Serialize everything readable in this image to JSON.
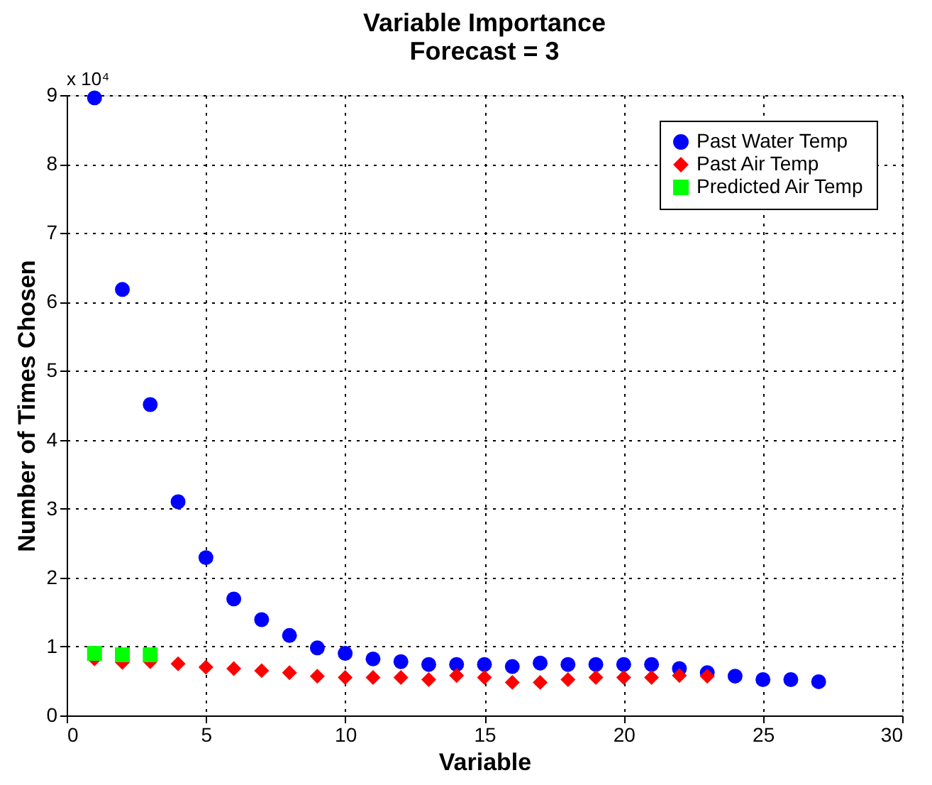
{
  "chart_data": {
    "type": "scatter",
    "title": "Variable Importance\nForecast = 3",
    "xlabel": "Variable",
    "ylabel": "Number of Times Chosen",
    "annotations": [
      "x 10⁴"
    ],
    "xlim": [
      0,
      30
    ],
    "xticks": [
      0,
      5,
      10,
      15,
      20,
      25,
      30
    ],
    "ylim": [
      0,
      9
    ],
    "yticks": [
      0,
      1,
      2,
      3,
      4,
      5,
      6,
      7,
      8,
      9
    ],
    "grid": true,
    "legend": "top right",
    "series": [
      {
        "name": "Past Water Temp",
        "color": "#0000ff",
        "marker": "circle",
        "x": [
          1,
          2,
          3,
          4,
          5,
          6,
          7,
          8,
          9,
          10,
          11,
          12,
          13,
          14,
          15,
          16,
          17,
          18,
          19,
          20,
          21,
          22,
          23,
          24,
          25,
          26,
          27
        ],
        "values": [
          8.96,
          6.18,
          4.51,
          3.1,
          2.29,
          1.69,
          1.39,
          1.16,
          0.98,
          0.9,
          0.82,
          0.78,
          0.74,
          0.74,
          0.74,
          0.71,
          0.76,
          0.74,
          0.74,
          0.74,
          0.74,
          0.68,
          0.62,
          0.57,
          0.52,
          0.52,
          0.49
        ]
      },
      {
        "name": "Past Air Temp",
        "color": "#ff0000",
        "marker": "diamond",
        "x": [
          1,
          2,
          3,
          4,
          5,
          6,
          7,
          8,
          9,
          10,
          11,
          12,
          13,
          14,
          15,
          16,
          17,
          18,
          19,
          20,
          21,
          22,
          23
        ],
        "values": [
          0.82,
          0.77,
          0.78,
          0.75,
          0.7,
          0.68,
          0.65,
          0.62,
          0.57,
          0.55,
          0.55,
          0.55,
          0.52,
          0.58,
          0.55,
          0.48,
          0.48,
          0.52,
          0.55,
          0.55,
          0.55,
          0.58,
          0.57
        ]
      },
      {
        "name": "Predicted Air Temp",
        "color": "#00ff00",
        "marker": "square",
        "x": [
          1,
          2,
          3
        ],
        "values": [
          0.9,
          0.88,
          0.88
        ]
      }
    ]
  }
}
